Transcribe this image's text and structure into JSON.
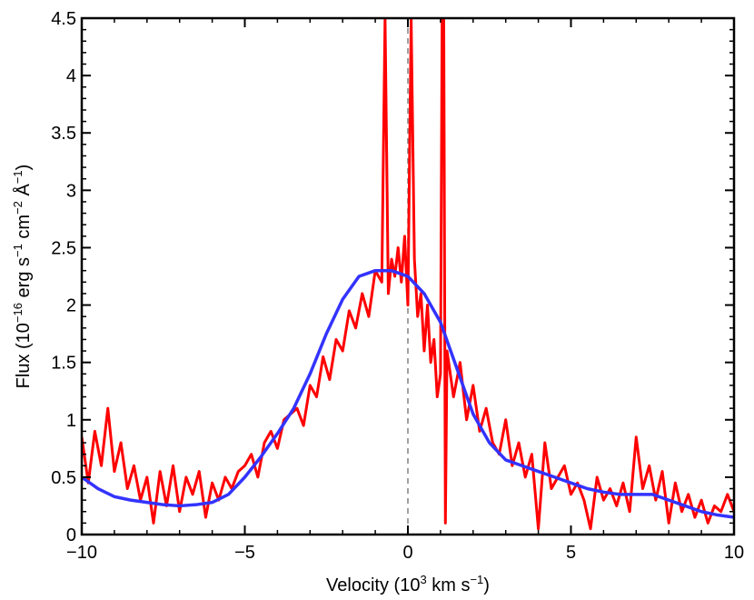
{
  "chart_data": {
    "type": "line",
    "xlabel": "Velocity (10^3 km s^-1)",
    "ylabel": "Flux (10^-16 erg s^-1 cm^-2 Å^-1)",
    "xlim": [
      -10,
      10
    ],
    "ylim": [
      0,
      4.5
    ],
    "x_ticks": [
      -10,
      -5,
      0,
      5,
      10
    ],
    "x_tick_labels": [
      "−10",
      "−5",
      "0",
      "5",
      "10"
    ],
    "y_ticks": [
      0,
      0.5,
      1,
      1.5,
      2,
      2.5,
      3,
      3.5,
      4,
      4.5
    ],
    "y_tick_labels": [
      "0",
      "0.5",
      "1",
      "1.5",
      "2",
      "2.5",
      "3",
      "3.5",
      "4",
      "4.5"
    ],
    "grid": false,
    "reference_line": {
      "x": 0,
      "style": "dashed",
      "color": "#808080"
    },
    "series": [
      {
        "color": "#ff0000",
        "x": [
          -10.0,
          -9.8,
          -9.6,
          -9.4,
          -9.2,
          -9.0,
          -8.8,
          -8.6,
          -8.4,
          -8.2,
          -8.0,
          -7.8,
          -7.6,
          -7.4,
          -7.2,
          -7.0,
          -6.8,
          -6.6,
          -6.4,
          -6.2,
          -6.0,
          -5.8,
          -5.6,
          -5.4,
          -5.2,
          -5.0,
          -4.8,
          -4.6,
          -4.4,
          -4.2,
          -4.0,
          -3.8,
          -3.6,
          -3.4,
          -3.2,
          -3.0,
          -2.8,
          -2.6,
          -2.4,
          -2.2,
          -2.0,
          -1.8,
          -1.6,
          -1.4,
          -1.2,
          -1.0,
          -0.8,
          -0.7,
          -0.6,
          -0.5,
          -0.4,
          -0.3,
          -0.2,
          -0.1,
          0.0,
          0.1,
          0.2,
          0.3,
          0.4,
          0.5,
          0.6,
          0.7,
          0.8,
          0.9,
          1.0,
          1.05,
          1.1,
          1.15,
          1.2,
          1.4,
          1.6,
          1.8,
          2.0,
          2.2,
          2.4,
          2.6,
          2.8,
          3.0,
          3.2,
          3.4,
          3.6,
          3.8,
          4.0,
          4.2,
          4.4,
          4.6,
          4.8,
          5.0,
          5.2,
          5.4,
          5.6,
          5.8,
          6.0,
          6.2,
          6.4,
          6.6,
          6.8,
          7.0,
          7.2,
          7.4,
          7.6,
          7.8,
          8.0,
          8.2,
          8.4,
          8.6,
          8.8,
          9.0,
          9.2,
          9.4,
          9.6,
          9.8,
          10.0
        ],
        "y": [
          0.85,
          0.45,
          0.9,
          0.6,
          1.1,
          0.55,
          0.8,
          0.4,
          0.6,
          0.3,
          0.5,
          0.1,
          0.55,
          0.25,
          0.6,
          0.2,
          0.5,
          0.35,
          0.55,
          0.15,
          0.45,
          0.3,
          0.5,
          0.4,
          0.55,
          0.6,
          0.7,
          0.5,
          0.8,
          0.9,
          0.75,
          1.0,
          1.05,
          1.1,
          0.95,
          1.3,
          1.2,
          1.55,
          1.35,
          1.7,
          1.6,
          1.95,
          1.8,
          2.1,
          1.9,
          2.3,
          2.2,
          4.5,
          2.1,
          2.4,
          2.25,
          2.5,
          2.2,
          2.6,
          2.0,
          4.5,
          2.4,
          1.9,
          2.1,
          1.6,
          2.0,
          1.5,
          1.7,
          1.2,
          1.4,
          4.5,
          4.5,
          0.1,
          1.6,
          1.2,
          1.5,
          1.0,
          1.3,
          0.9,
          1.1,
          0.8,
          0.7,
          1.0,
          0.6,
          0.8,
          0.5,
          0.7,
          0.05,
          0.8,
          0.4,
          0.5,
          0.6,
          0.35,
          0.45,
          0.3,
          0.05,
          0.5,
          0.3,
          0.4,
          0.25,
          0.45,
          0.2,
          0.85,
          0.4,
          0.6,
          0.3,
          0.55,
          0.1,
          0.45,
          0.2,
          0.35,
          0.15,
          0.3,
          0.1,
          0.25,
          0.2,
          0.35,
          0.2
        ]
      },
      {
        "color": "#3333ff",
        "x": [
          -10.0,
          -9.5,
          -9.0,
          -8.5,
          -8.0,
          -7.5,
          -7.0,
          -6.5,
          -6.0,
          -5.5,
          -5.0,
          -4.5,
          -4.0,
          -3.5,
          -3.0,
          -2.5,
          -2.0,
          -1.5,
          -1.0,
          -0.5,
          0.0,
          0.5,
          1.0,
          1.5,
          2.0,
          2.5,
          3.0,
          3.5,
          4.0,
          4.5,
          5.0,
          5.5,
          6.0,
          6.5,
          7.0,
          7.5,
          8.0,
          8.5,
          9.0,
          9.5,
          10.0
        ],
        "y": [
          0.5,
          0.4,
          0.33,
          0.3,
          0.28,
          0.26,
          0.25,
          0.26,
          0.28,
          0.35,
          0.5,
          0.68,
          0.88,
          1.1,
          1.4,
          1.75,
          2.05,
          2.25,
          2.3,
          2.3,
          2.25,
          2.1,
          1.85,
          1.45,
          1.05,
          0.8,
          0.65,
          0.6,
          0.55,
          0.5,
          0.45,
          0.4,
          0.37,
          0.35,
          0.35,
          0.35,
          0.3,
          0.25,
          0.2,
          0.17,
          0.15
        ]
      }
    ]
  }
}
